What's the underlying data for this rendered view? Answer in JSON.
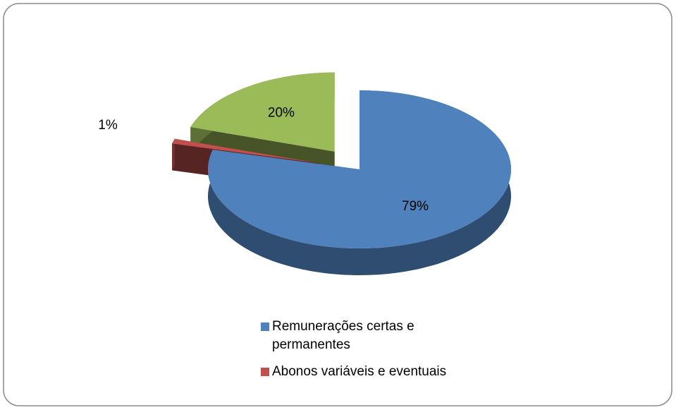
{
  "chart_data": {
    "type": "pie",
    "categories": [
      "Remunerações certas e permanentes",
      "Abonos variáveis e eventuais",
      null
    ],
    "values": [
      79,
      1,
      20
    ],
    "value_labels": [
      "79%",
      "1%",
      "20%"
    ],
    "colors": [
      "#4f81bd",
      "#c0504d",
      "#9bbb59"
    ],
    "legend": "bottom"
  }
}
